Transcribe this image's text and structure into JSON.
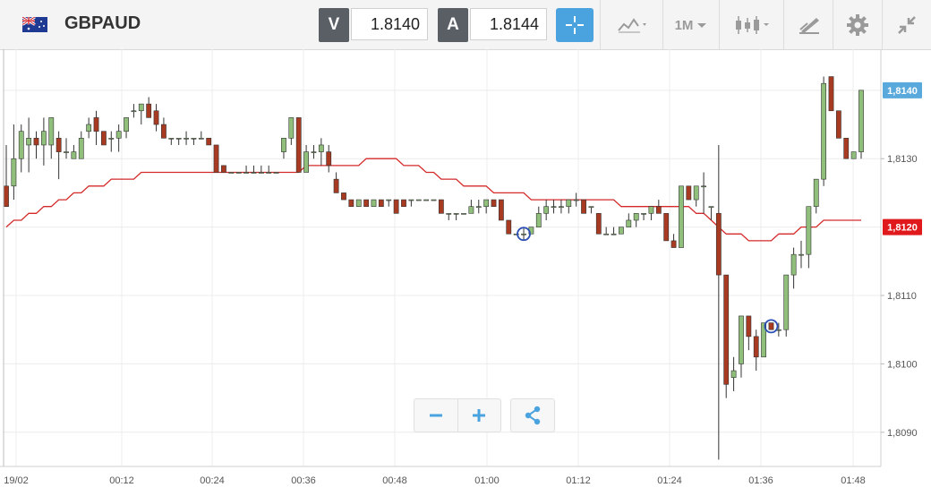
{
  "header": {
    "symbol": "GBPAUD",
    "sell_label": "V",
    "sell_price": "1.8140",
    "buy_label": "A",
    "buy_price": "1.8144",
    "timeframe": "1M"
  },
  "icons": {
    "flag": "gbp-aud-flag-icon",
    "crosshair": "crosshair-icon",
    "chart_type": "line-chart-icon",
    "candles": "candlestick-icon",
    "draw": "drawing-tools-icon",
    "settings": "gear-icon",
    "collapse": "collapse-icon",
    "zoom_out": "minus-icon",
    "zoom_in": "plus-icon",
    "share": "share-icon"
  },
  "colors": {
    "accent": "#4aa3df",
    "bull": "#8fbf7a",
    "bear": "#a83a22",
    "moving_average": "#d42a2a",
    "current_price_tag": "#5aa9dc",
    "ma_price_tag": "#e0191d"
  },
  "chart_data": {
    "type": "candlestick",
    "x_tick_labels": [
      "19/02",
      "00:12",
      "00:24",
      "00:36",
      "00:48",
      "01:00",
      "01:12",
      "01:24",
      "01:36",
      "01:48"
    ],
    "y_tick_labels": [
      "1,8090",
      "1,8100",
      "1,8110",
      "1,8130"
    ],
    "ylim": [
      1.8085,
      1.8146
    ],
    "current_price_label": "1,8140",
    "current_price": 1.814,
    "ma_price_label": "1,8120",
    "ma_price": 1.812,
    "grid": true,
    "candles": [
      [
        1.8126,
        1.8132,
        1.8123,
        1.8123
      ],
      [
        1.8126,
        1.8135,
        1.8124,
        1.813
      ],
      [
        1.813,
        1.8135,
        1.8128,
        1.8134
      ],
      [
        1.8132,
        1.8136,
        1.8128,
        1.8133
      ],
      [
        1.8133,
        1.8134,
        1.813,
        1.8132
      ],
      [
        1.8132,
        1.8136,
        1.8129,
        1.8134
      ],
      [
        1.8132,
        1.8136,
        1.813,
        1.8136
      ],
      [
        1.8133,
        1.8134,
        1.8127,
        1.8131
      ],
      [
        1.8131,
        1.8133,
        1.813,
        1.8131
      ],
      [
        1.813,
        1.8132,
        1.813,
        1.8131
      ],
      [
        1.813,
        1.8134,
        1.813,
        1.8133
      ],
      [
        1.8134,
        1.8136,
        1.8133,
        1.8135
      ],
      [
        1.8136,
        1.8137,
        1.8132,
        1.8134
      ],
      [
        1.8134,
        1.8134,
        1.8132,
        1.8132
      ],
      [
        1.8133,
        1.8134,
        1.8131,
        1.8133
      ],
      [
        1.8133,
        1.8135,
        1.8131,
        1.8134
      ],
      [
        1.8134,
        1.8136,
        1.8133,
        1.8136
      ],
      [
        1.8137,
        1.8138,
        1.8136,
        1.8137
      ],
      [
        1.8137,
        1.8138,
        1.8135,
        1.8138
      ],
      [
        1.8138,
        1.8139,
        1.8136,
        1.8136
      ],
      [
        1.8137,
        1.8138,
        1.8134,
        1.8135
      ],
      [
        1.8135,
        1.8136,
        1.8133,
        1.8133
      ],
      [
        1.8133,
        1.8133,
        1.8132,
        1.8133
      ],
      [
        1.8133,
        1.8133,
        1.8132,
        1.8133
      ],
      [
        1.8133,
        1.8134,
        1.8132,
        1.8133
      ],
      [
        1.8133,
        1.8133,
        1.8132,
        1.8133
      ],
      [
        1.8133,
        1.8134,
        1.8133,
        1.8133
      ],
      [
        1.8133,
        1.8133,
        1.8132,
        1.8132
      ],
      [
        1.8132,
        1.8132,
        1.8128,
        1.8128
      ],
      [
        1.8129,
        1.8129,
        1.8128,
        1.8128
      ],
      [
        1.8128,
        1.8128,
        1.8128,
        1.8128
      ],
      [
        1.8128,
        1.8128,
        1.8128,
        1.8128
      ],
      [
        1.8128,
        1.8129,
        1.8128,
        1.8128
      ],
      [
        1.8128,
        1.8129,
        1.8128,
        1.8128
      ],
      [
        1.8128,
        1.8129,
        1.8128,
        1.8128
      ],
      [
        1.8128,
        1.8129,
        1.8128,
        1.8128
      ],
      [
        1.8128,
        1.8128,
        1.8128,
        1.8128
      ],
      [
        1.8131,
        1.8133,
        1.813,
        1.8133
      ],
      [
        1.8133,
        1.8136,
        1.8132,
        1.8136
      ],
      [
        1.8136,
        1.8136,
        1.8128,
        1.8128
      ],
      [
        1.8128,
        1.8132,
        1.8128,
        1.8131
      ],
      [
        1.8131,
        1.8132,
        1.813,
        1.8131
      ],
      [
        1.8131,
        1.8133,
        1.8129,
        1.8132
      ],
      [
        1.8131,
        1.8132,
        1.8128,
        1.8129
      ],
      [
        1.8127,
        1.8128,
        1.8125,
        1.8125
      ],
      [
        1.8125,
        1.8125,
        1.8124,
        1.8124
      ],
      [
        1.8124,
        1.8124,
        1.8123,
        1.8123
      ],
      [
        1.8123,
        1.8124,
        1.8123,
        1.8124
      ],
      [
        1.8124,
        1.8124,
        1.8123,
        1.8123
      ],
      [
        1.8123,
        1.8124,
        1.8123,
        1.8124
      ],
      [
        1.8124,
        1.8124,
        1.8123,
        1.8123
      ],
      [
        1.8124,
        1.8124,
        1.8123,
        1.8124
      ],
      [
        1.8124,
        1.8124,
        1.8122,
        1.8122
      ],
      [
        1.8124,
        1.8124,
        1.8123,
        1.8123
      ],
      [
        1.8124,
        1.8124,
        1.8123,
        1.8124
      ],
      [
        1.8124,
        1.8124,
        1.8124,
        1.8124
      ],
      [
        1.8124,
        1.8124,
        1.8124,
        1.8124
      ],
      [
        1.8124,
        1.8124,
        1.8124,
        1.8124
      ],
      [
        1.8124,
        1.8124,
        1.8122,
        1.8122
      ],
      [
        1.8122,
        1.8122,
        1.8121,
        1.8122
      ],
      [
        1.8122,
        1.8122,
        1.8121,
        1.8122
      ],
      [
        1.8122,
        1.8122,
        1.8122,
        1.8122
      ],
      [
        1.8122,
        1.8124,
        1.8122,
        1.8123
      ],
      [
        1.8123,
        1.8124,
        1.8122,
        1.8123
      ],
      [
        1.8123,
        1.8124,
        1.8122,
        1.8124
      ],
      [
        1.8124,
        1.8124,
        1.8123,
        1.8123
      ],
      [
        1.8124,
        1.8124,
        1.8121,
        1.8121
      ],
      [
        1.8121,
        1.8121,
        1.8119,
        1.8119
      ],
      [
        1.8119,
        1.8119,
        1.8119,
        1.8119
      ],
      [
        1.8119,
        1.812,
        1.8118,
        1.8119
      ],
      [
        1.8119,
        1.812,
        1.8119,
        1.812
      ],
      [
        1.812,
        1.8123,
        1.812,
        1.8122
      ],
      [
        1.8122,
        1.8124,
        1.8121,
        1.8123
      ],
      [
        1.8123,
        1.8124,
        1.8122,
        1.8123
      ],
      [
        1.8123,
        1.8124,
        1.8122,
        1.8123
      ],
      [
        1.8123,
        1.8124,
        1.8122,
        1.8124
      ],
      [
        1.8124,
        1.8125,
        1.8123,
        1.8124
      ],
      [
        1.8124,
        1.8124,
        1.8122,
        1.8122
      ],
      [
        1.8123,
        1.8123,
        1.8122,
        1.8123
      ],
      [
        1.8122,
        1.8122,
        1.8119,
        1.8119
      ],
      [
        1.8119,
        1.812,
        1.8119,
        1.8119
      ],
      [
        1.8119,
        1.812,
        1.8119,
        1.8119
      ],
      [
        1.8119,
        1.812,
        1.8119,
        1.812
      ],
      [
        1.812,
        1.8122,
        1.812,
        1.8121
      ],
      [
        1.8121,
        1.8122,
        1.812,
        1.8122
      ],
      [
        1.8122,
        1.8122,
        1.8121,
        1.8122
      ],
      [
        1.8122,
        1.8123,
        1.8121,
        1.8123
      ],
      [
        1.8123,
        1.8124,
        1.8122,
        1.8122
      ],
      [
        1.8122,
        1.8122,
        1.8118,
        1.8118
      ],
      [
        1.8118,
        1.8119,
        1.8117,
        1.8117
      ],
      [
        1.8117,
        1.8126,
        1.8117,
        1.8126
      ],
      [
        1.8126,
        1.8126,
        1.8124,
        1.8124
      ],
      [
        1.8124,
        1.8126,
        1.8123,
        1.8126
      ],
      [
        1.8126,
        1.8128,
        1.8122,
        1.8126
      ],
      [
        1.8123,
        1.8123,
        1.8121,
        1.8123
      ],
      [
        1.8122,
        1.8132,
        1.8086,
        1.8113
      ],
      [
        1.8113,
        1.8113,
        1.8095,
        1.8097
      ],
      [
        1.8098,
        1.8101,
        1.8096,
        1.8099
      ],
      [
        1.81,
        1.8107,
        1.8098,
        1.8107
      ],
      [
        1.8107,
        1.8107,
        1.8102,
        1.8104
      ],
      [
        1.8104,
        1.8105,
        1.8099,
        1.8101
      ],
      [
        1.8101,
        1.8106,
        1.8101,
        1.8106
      ],
      [
        1.8106,
        1.8106,
        1.8105,
        1.8105
      ],
      [
        1.8105,
        1.8106,
        1.8104,
        1.8105
      ],
      [
        1.8105,
        1.8113,
        1.8104,
        1.8113
      ],
      [
        1.8113,
        1.8117,
        1.8111,
        1.8116
      ],
      [
        1.8116,
        1.8118,
        1.8114,
        1.8116
      ],
      [
        1.8116,
        1.8123,
        1.8114,
        1.8123
      ],
      [
        1.8123,
        1.8127,
        1.8122,
        1.8127
      ],
      [
        1.8127,
        1.8142,
        1.8126,
        1.8141
      ],
      [
        1.8142,
        1.8142,
        1.8137,
        1.8137
      ],
      [
        1.8137,
        1.8137,
        1.8133,
        1.8133
      ],
      [
        1.8133,
        1.8133,
        1.813,
        1.813
      ],
      [
        1.813,
        1.8131,
        1.813,
        1.8131
      ],
      [
        1.8131,
        1.814,
        1.813,
        1.814
      ]
    ],
    "moving_average": [
      1.812,
      1.8121,
      1.8121,
      1.8122,
      1.8122,
      1.8123,
      1.8123,
      1.8124,
      1.8124,
      1.8125,
      1.8125,
      1.8126,
      1.8126,
      1.8126,
      1.8127,
      1.8127,
      1.8127,
      1.8127,
      1.8128,
      1.8128,
      1.8128,
      1.8128,
      1.8128,
      1.8128,
      1.8128,
      1.8128,
      1.8128,
      1.8128,
      1.8128,
      1.8128,
      1.8128,
      1.8128,
      1.8128,
      1.8128,
      1.8128,
      1.8128,
      1.8128,
      1.8128,
      1.8128,
      1.8128,
      1.8129,
      1.8129,
      1.8129,
      1.8129,
      1.8129,
      1.8129,
      1.8129,
      1.8129,
      1.813,
      1.813,
      1.813,
      1.813,
      1.813,
      1.8129,
      1.8129,
      1.8129,
      1.8128,
      1.8128,
      1.8127,
      1.8127,
      1.8127,
      1.8126,
      1.8126,
      1.8126,
      1.8126,
      1.8125,
      1.8125,
      1.8125,
      1.8125,
      1.8125,
      1.8124,
      1.8124,
      1.8124,
      1.8124,
      1.8124,
      1.8124,
      1.8124,
      1.8124,
      1.8124,
      1.8124,
      1.8124,
      1.8124,
      1.8123,
      1.8123,
      1.8123,
      1.8123,
      1.8123,
      1.8123,
      1.8123,
      1.8123,
      1.8123,
      1.8123,
      1.8122,
      1.8122,
      1.8121,
      1.812,
      1.8119,
      1.8119,
      1.8119,
      1.8118,
      1.8118,
      1.8118,
      1.8118,
      1.8119,
      1.8119,
      1.8119,
      1.812,
      1.812,
      1.812,
      1.8121,
      1.8121,
      1.8121,
      1.8121,
      1.8121,
      1.8121
    ],
    "marked_candles": [
      69,
      102
    ]
  }
}
